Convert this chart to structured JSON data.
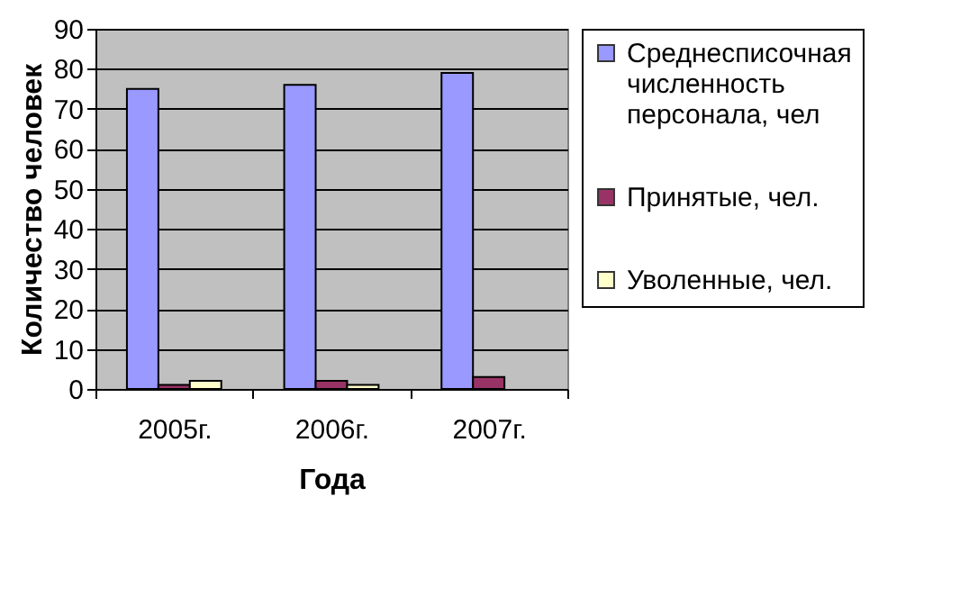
{
  "chart_data": {
    "type": "bar",
    "xlabel": "Года",
    "ylabel": "Количество человек",
    "categories": [
      "2005г.",
      "2006г.",
      "2007г."
    ],
    "series": [
      {
        "name": "Среднесписочная численность персонала, чел",
        "color": "#9999ff",
        "values": [
          75,
          76,
          79
        ]
      },
      {
        "name": "Принятые, чел.",
        "color": "#993366",
        "values": [
          1,
          2,
          3
        ]
      },
      {
        "name": "Уволенные, чел.",
        "color": "#ffffcc",
        "values": [
          2,
          1,
          null
        ]
      }
    ],
    "ylim": [
      0,
      90
    ],
    "yticks": [
      0,
      10,
      20,
      30,
      40,
      50,
      60,
      70,
      80,
      90
    ],
    "grid": "y",
    "legend": "right"
  }
}
